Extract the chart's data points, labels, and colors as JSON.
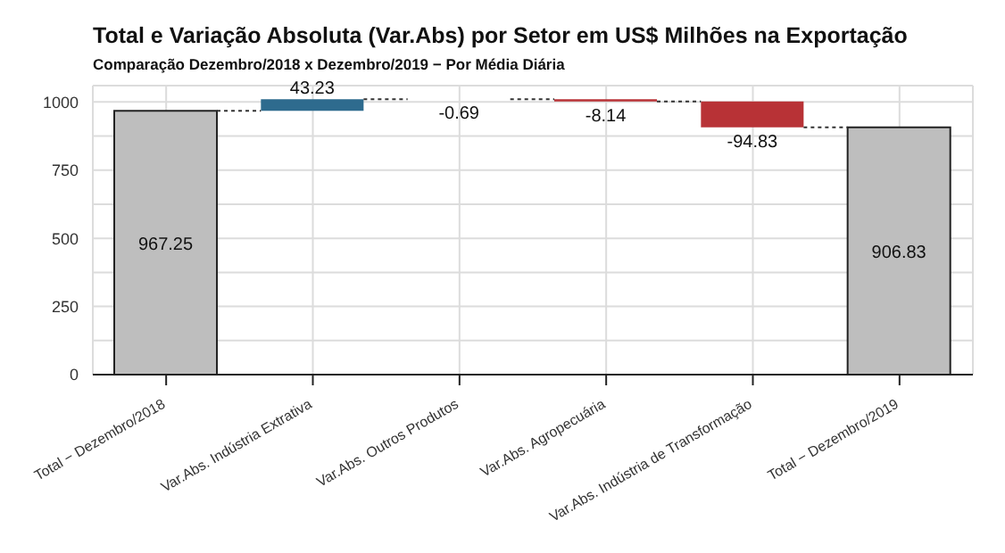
{
  "chart_data": {
    "type": "bar",
    "title": "Total e Variação Absoluta (Var.Abs) por Setor em US$ Milhões na Exportação",
    "subtitle": "Comparação Dezembro/2018 x Dezembro/2019 − Por Média Diária",
    "categories": [
      "Total − Dezembro/2018",
      "Var.Abs. Indústria Extrativa",
      "Var.Abs. Outros Produtos",
      "Var.Abs. Agropecuária",
      "Var.Abs. Indústria de Transformação",
      "Total − Dezembro/2019"
    ],
    "values": [
      967.25,
      43.23,
      -0.69,
      -8.14,
      -94.83,
      906.83
    ],
    "base": [
      0,
      967.25,
      1010.48,
      1009.79,
      1001.65,
      0
    ],
    "colors": [
      "#bebebe",
      "#2e6b8e",
      "#b83236",
      "#b83236",
      "#b83236",
      "#bebebe"
    ],
    "data_labels": true,
    "ylim": [
      0,
      1060
    ],
    "yticks": [
      0,
      {
        "value": 125,
        "label": null
      },
      250,
      {
        "value": 375,
        "label": null
      },
      500,
      {
        "value": 625,
        "label": null
      },
      750,
      {
        "value": 875,
        "label": null
      },
      1000
    ],
    "grid": true
  }
}
